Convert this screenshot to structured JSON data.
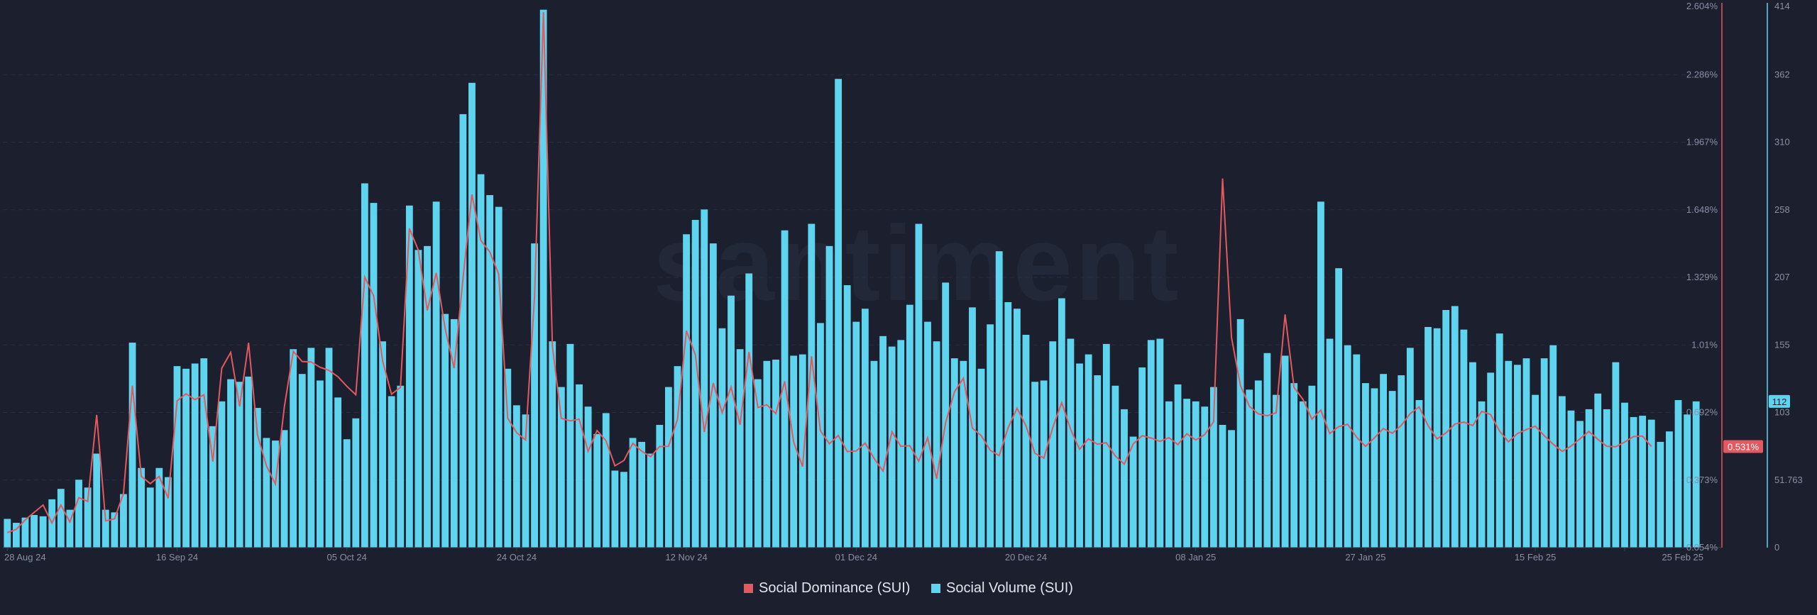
{
  "watermark": "santiment",
  "colors": {
    "background": "#1b1f2e",
    "volume": "#5fd4ef",
    "dominance": "#e25a5f",
    "grid": "#2a2f42",
    "axis_text": "#8a8fa3"
  },
  "legend": {
    "dominance_label": "Social Dominance (SUI)",
    "volume_label": "Social Volume (SUI)"
  },
  "chart_data": {
    "type": "bar",
    "grid": "horizontal-dashed",
    "legend_position": "bottom-center",
    "x_tick_labels": [
      "28 Aug 24",
      "16 Sep 24",
      "05 Oct 24",
      "24 Oct 24",
      "12 Nov 24",
      "01 Dec 24",
      "20 Dec 24",
      "08 Jan 25",
      "27 Jan 25",
      "15 Feb 25",
      "25 Feb 25"
    ],
    "x_tick_day_index": [
      0,
      19,
      38,
      57,
      76,
      95,
      114,
      133,
      152,
      171,
      181
    ],
    "left_axis": {
      "series": "Social Dominance (SUI)",
      "unit": "%",
      "ticks": [
        "0.054%",
        "0.373%",
        "0.692%",
        "1.01%",
        "1.329%",
        "1.648%",
        "1.967%",
        "2.286%",
        "2.604%"
      ],
      "range": [
        0.054,
        2.604
      ],
      "current_value_label": "0.531%"
    },
    "right_axis": {
      "series": "Social Volume (SUI)",
      "ticks": [
        "0",
        "51.763",
        "103",
        "155",
        "207",
        "258",
        "310",
        "362",
        "414"
      ],
      "range": [
        0,
        414
      ],
      "current_value_label": "112"
    },
    "series": [
      {
        "name": "Social Volume (SUI)",
        "type": "bar",
        "axis": "right",
        "values": [
          22,
          19,
          23,
          25,
          24,
          37,
          45,
          29,
          52,
          46,
          72,
          29,
          27,
          41,
          157,
          61,
          46,
          61,
          54,
          139,
          137,
          141,
          145,
          93,
          112,
          129,
          127,
          131,
          107,
          84,
          82,
          90,
          152,
          133,
          153,
          128,
          153,
          115,
          83,
          99,
          279,
          264,
          158,
          116,
          124,
          262,
          228,
          231,
          265,
          179,
          175,
          332,
          356,
          286,
          270,
          261,
          137,
          109,
          102,
          233,
          412,
          158,
          123,
          156,
          125,
          108,
          87,
          103,
          59,
          58,
          84,
          81,
          72,
          94,
          123,
          139,
          240,
          251,
          259,
          233,
          168,
          193,
          152,
          210,
          129,
          143,
          144,
          243,
          147,
          148,
          248,
          172,
          231,
          359,
          201,
          173,
          183,
          143,
          162,
          154,
          159,
          186,
          248,
          173,
          158,
          203,
          145,
          143,
          184,
          137,
          171,
          227,
          188,
          183,
          163,
          127,
          128,
          158,
          191,
          160,
          141,
          148,
          132,
          156,
          124,
          106,
          85,
          138,
          159,
          160,
          112,
          125,
          114,
          112,
          108,
          123,
          94,
          90,
          175,
          121,
          128,
          149,
          117,
          147,
          126,
          112,
          124,
          265,
          160,
          214,
          155,
          148,
          126,
          122,
          133,
          120,
          132,
          153,
          113,
          169,
          168,
          182,
          185,
          167,
          142,
          112,
          134,
          164,
          143,
          140,
          145,
          117,
          145,
          155,
          116,
          105,
          97,
          106,
          118,
          106,
          142,
          111,
          100,
          101,
          98,
          81,
          89,
          113,
          102,
          112
        ]
      },
      {
        "name": "Social Dominance (SUI)",
        "type": "line",
        "axis": "left",
        "values": [
          0.125,
          0.14,
          0.185,
          0.22,
          0.255,
          0.17,
          0.255,
          0.175,
          0.29,
          0.272,
          0.68,
          0.18,
          0.19,
          0.31,
          0.818,
          0.39,
          0.356,
          0.39,
          0.287,
          0.746,
          0.78,
          0.752,
          0.775,
          0.46,
          0.9,
          0.975,
          0.72,
          1.02,
          0.585,
          0.44,
          0.354,
          0.718,
          0.98,
          0.932,
          0.93,
          0.905,
          0.89,
          0.86,
          0.815,
          0.775,
          1.33,
          1.241,
          0.934,
          0.778,
          0.81,
          1.56,
          1.457,
          1.173,
          1.35,
          1.087,
          0.9,
          1.326,
          1.72,
          1.503,
          1.449,
          1.343,
          0.665,
          0.596,
          0.562,
          1.236,
          2.58,
          1.004,
          0.664,
          0.652,
          0.66,
          0.508,
          0.606,
          0.558,
          0.44,
          0.465,
          0.546,
          0.509,
          0.483,
          0.531,
          0.532,
          0.659,
          1.077,
          0.964,
          0.599,
          0.83,
          0.69,
          0.812,
          0.633,
          0.977,
          0.715,
          0.728,
          0.686,
          0.838,
          0.552,
          0.436,
          0.957,
          0.605,
          0.544,
          0.583,
          0.507,
          0.51,
          0.547,
          0.475,
          0.415,
          0.6,
          0.532,
          0.535,
          0.462,
          0.572,
          0.379,
          0.642,
          0.789,
          0.853,
          0.618,
          0.582,
          0.513,
          0.488,
          0.619,
          0.712,
          0.629,
          0.499,
          0.476,
          0.621,
          0.738,
          0.612,
          0.518,
          0.567,
          0.542,
          0.549,
          0.486,
          0.448,
          0.543,
          0.582,
          0.571,
          0.555,
          0.573,
          0.54,
          0.591,
          0.562,
          0.587,
          0.648,
          1.795,
          1.045,
          0.82,
          0.721,
          0.685,
          0.676,
          0.69,
          1.154,
          0.81,
          0.753,
          0.66,
          0.703,
          0.592,
          0.625,
          0.636,
          0.575,
          0.532,
          0.572,
          0.616,
          0.593,
          0.631,
          0.686,
          0.718,
          0.63,
          0.567,
          0.595,
          0.637,
          0.646,
          0.63,
          0.697,
          0.682,
          0.604,
          0.553,
          0.592,
          0.611,
          0.627,
          0.582,
          0.542,
          0.508,
          0.533,
          0.567,
          0.602,
          0.565,
          0.532,
          0.53,
          0.552,
          0.578,
          0.58,
          0.531
        ]
      }
    ]
  }
}
